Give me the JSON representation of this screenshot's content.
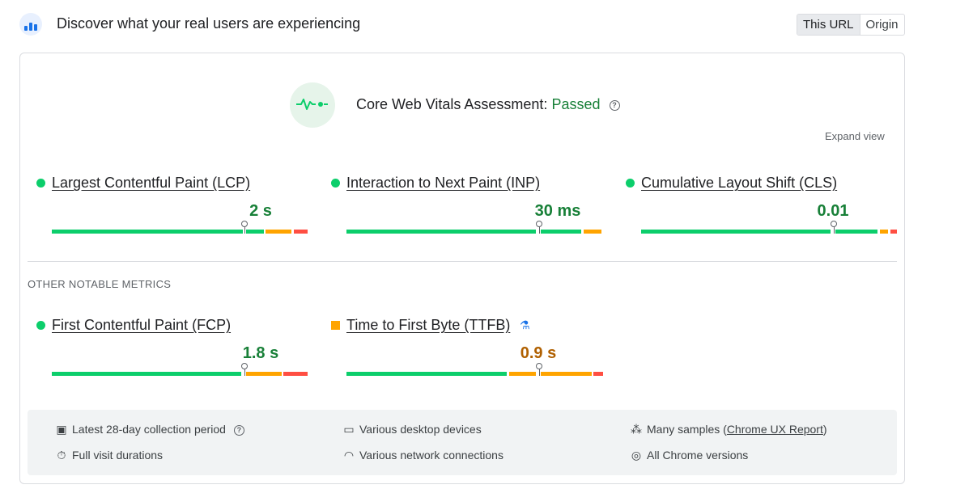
{
  "header": {
    "title": "Discover what your real users are experiencing",
    "toggle": {
      "this_url": "This URL",
      "origin": "Origin",
      "selected": "This URL"
    }
  },
  "assessment": {
    "label": "Core Web Vitals Assessment:",
    "status": "Passed",
    "help_icon": "?",
    "expand_label": "Expand view"
  },
  "core_metrics": [
    {
      "name": "Largest Contentful Paint (LCP)",
      "value": "2 s",
      "status": "good"
    },
    {
      "name": "Interaction to Next Paint (INP)",
      "value": "30 ms",
      "status": "good"
    },
    {
      "name": "Cumulative Layout Shift (CLS)",
      "value": "0.01",
      "status": "good"
    }
  ],
  "other_section_title": "OTHER NOTABLE METRICS",
  "other_metrics": [
    {
      "name": "First Contentful Paint (FCP)",
      "value": "1.8 s",
      "status": "good"
    },
    {
      "name": "Time to First Byte (TTFB)",
      "value": "0.9 s",
      "status": "needs-improvement",
      "experimental": true
    }
  ],
  "footer": {
    "collection_period": "Latest 28-day collection period",
    "visit_durations": "Full visit durations",
    "devices": "Various desktop devices",
    "network": "Various network connections",
    "samples_prefix": "Many samples (",
    "samples_link": "Chrome UX Report",
    "samples_suffix": ")",
    "chrome_versions": "All Chrome versions"
  },
  "colors": {
    "good": "#0cce6b",
    "needs_improvement": "#ffa400",
    "poor": "#ff4e42",
    "passed_text": "#188038",
    "orange_text": "#b06000"
  }
}
